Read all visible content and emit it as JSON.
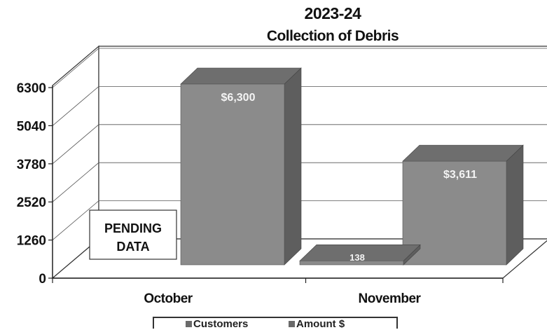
{
  "chart_data": {
    "type": "bar",
    "title_line1": "2023-24",
    "title_line2": "Collection of Debris",
    "categories": [
      "October",
      "November"
    ],
    "series": [
      {
        "name": "Customers",
        "values": [
          null,
          138
        ]
      },
      {
        "name": "Amount $",
        "values": [
          6300,
          3611
        ]
      }
    ],
    "data_labels": {
      "customers": [
        "",
        "138"
      ],
      "amount": [
        "$6,300",
        "$3,611"
      ]
    },
    "annotation": {
      "line1": "PENDING",
      "line2": "DATA"
    },
    "yticks": [
      "0",
      "1260",
      "2520",
      "3780",
      "5040",
      "6300"
    ],
    "ylim": [
      0,
      6300
    ],
    "grid": true,
    "legend_position": "bottom",
    "colors": {
      "bar_front": "#8b8b8b",
      "bar_side": "#5e5e5e",
      "bar_top": "#6e6e6e"
    }
  }
}
